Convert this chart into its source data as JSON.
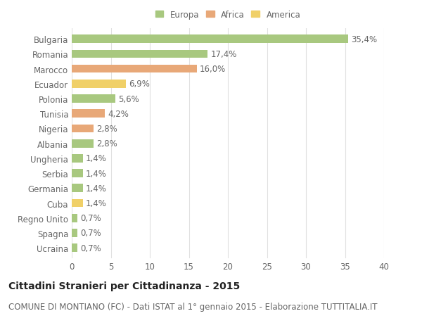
{
  "countries": [
    "Bulgaria",
    "Romania",
    "Marocco",
    "Ecuador",
    "Polonia",
    "Tunisia",
    "Nigeria",
    "Albania",
    "Ungheria",
    "Serbia",
    "Germania",
    "Cuba",
    "Regno Unito",
    "Spagna",
    "Ucraina"
  ],
  "values": [
    35.4,
    17.4,
    16.0,
    6.9,
    5.6,
    4.2,
    2.8,
    2.8,
    1.4,
    1.4,
    1.4,
    1.4,
    0.7,
    0.7,
    0.7
  ],
  "labels": [
    "35,4%",
    "17,4%",
    "16,0%",
    "6,9%",
    "5,6%",
    "4,2%",
    "2,8%",
    "2,8%",
    "1,4%",
    "1,4%",
    "1,4%",
    "1,4%",
    "0,7%",
    "0,7%",
    "0,7%"
  ],
  "continents": [
    "Europa",
    "Europa",
    "Africa",
    "America",
    "Europa",
    "Africa",
    "Africa",
    "Europa",
    "Europa",
    "Europa",
    "Europa",
    "America",
    "Europa",
    "Europa",
    "Europa"
  ],
  "colors": {
    "Europa": "#a8c87f",
    "Africa": "#e8a878",
    "America": "#f0d068"
  },
  "xlim": [
    0,
    40
  ],
  "xticks": [
    0,
    5,
    10,
    15,
    20,
    25,
    30,
    35,
    40
  ],
  "title": "Cittadini Stranieri per Cittadinanza - 2015",
  "subtitle": "COMUNE DI MONTIANO (FC) - Dati ISTAT al 1° gennaio 2015 - Elaborazione TUTTITALIA.IT",
  "background_color": "#ffffff",
  "grid_color": "#e0e0e0",
  "bar_height": 0.55,
  "label_fontsize": 8.5,
  "ytick_fontsize": 8.5,
  "xtick_fontsize": 8.5,
  "title_fontsize": 10,
  "subtitle_fontsize": 8.5,
  "text_color": "#666666",
  "title_color": "#222222"
}
